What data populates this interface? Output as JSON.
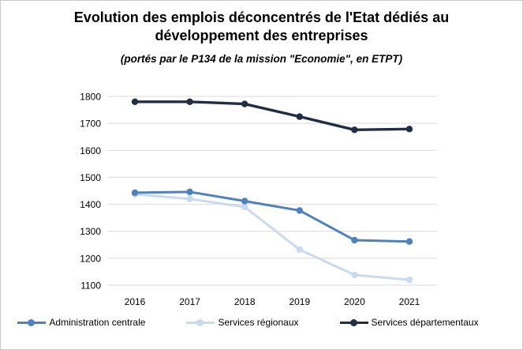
{
  "header": {
    "title": "Evolution des emplois déconcentrés de l'Etat dédiés au développement des entreprises",
    "subtitle": "(portés par le P134 de la mission \"Economie\", en ETPT)"
  },
  "chart_data": {
    "type": "line",
    "title": "Evolution des emplois déconcentrés de l'Etat dédiés au développement des entreprises",
    "subtitle": "(portés par le P134 de la mission \"Economie\", en ETPT)",
    "categories": [
      "2016",
      "2017",
      "2018",
      "2019",
      "2020",
      "2021"
    ],
    "series": [
      {
        "name": "Administration centrale",
        "color": "#4f81bd",
        "values": [
          1443,
          1446,
          1412,
          1377,
          1267,
          1262
        ]
      },
      {
        "name": "Services régionaux",
        "color": "#c9d9f0",
        "values": [
          1437,
          1420,
          1390,
          1232,
          1138,
          1120
        ]
      },
      {
        "name": "Services départementaux",
        "color": "#1f2e45",
        "values": [
          1780,
          1780,
          1772,
          1725,
          1676,
          1679
        ]
      }
    ],
    "ylim": [
      1100,
      1800
    ],
    "ytick_step": 100,
    "yticks": [
      1100,
      1200,
      1300,
      1400,
      1500,
      1600,
      1700,
      1800
    ],
    "grid": "horizontal",
    "gridline_color": "#d9d9d9",
    "tick_label_color": "#000000",
    "marker": "circle",
    "legend_position": "bottom"
  }
}
